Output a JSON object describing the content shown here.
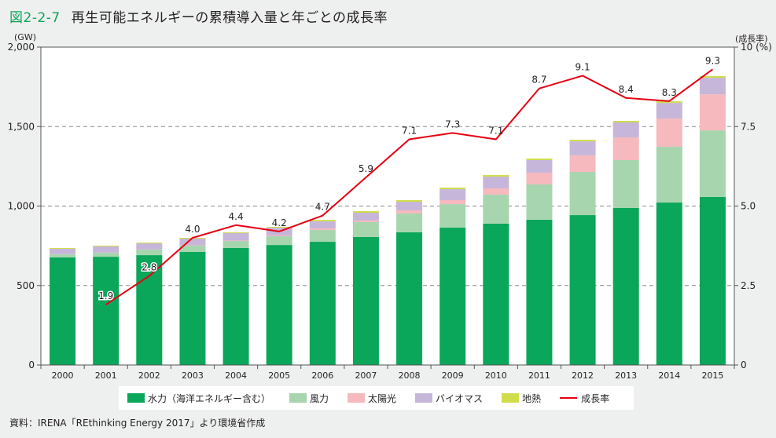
{
  "header": {
    "figure_number": "図2-2-7",
    "title": "再生可能エネルギーの累積導入量と年ごとの成長率"
  },
  "source_note": "資料：IRENA「REthinking Energy 2017」より環境省作成",
  "chart_data": {
    "type": "bar",
    "subtype": "stacked bar with line on secondary axis",
    "title": "再生可能エネルギーの累積導入量と年ごとの成長率",
    "categories": [
      "2000",
      "2001",
      "2002",
      "2003",
      "2004",
      "2005",
      "2006",
      "2007",
      "2008",
      "2009",
      "2010",
      "2011",
      "2012",
      "2013",
      "2014",
      "2015"
    ],
    "y_left": {
      "label": "(GW)",
      "range": [
        0,
        2000
      ],
      "ticks": [
        0,
        500,
        1000,
        1500,
        2000
      ],
      "tick_labels": [
        "0",
        "500",
        "1,000",
        "1,500",
        "2,000"
      ]
    },
    "y_right": {
      "label": "(成長率)",
      "unit_label": "10 (%)",
      "range": [
        0,
        10
      ],
      "ticks": [
        0,
        2.5,
        5.0,
        7.5,
        10
      ],
      "tick_labels": [
        "0",
        "2.5",
        "5.0",
        "7.5",
        "10 (%)"
      ]
    },
    "grid": "dashed horizontal at 500, 1000, 1500",
    "legend_position": "bottom",
    "series": [
      {
        "name": "水力（海洋エネルギー含む）",
        "color": "#0aa65a",
        "values": [
          677,
          681,
          691,
          711,
          736,
          755,
          775,
          805,
          835,
          864,
          889,
          914,
          943,
          988,
          1022,
          1057
        ]
      },
      {
        "name": "風力",
        "color": "#a6d5ae",
        "values": [
          19,
          25,
          35,
          40,
          44,
          55,
          74,
          94,
          118,
          148,
          183,
          222,
          272,
          301,
          351,
          419
        ]
      },
      {
        "name": "太陽光",
        "color": "#f6b9be",
        "values": [
          1,
          1,
          1,
          2,
          3,
          5,
          10,
          10,
          20,
          25,
          39,
          74,
          104,
          143,
          178,
          227
        ]
      },
      {
        "name": "バイオマス",
        "color": "#c6b6d9",
        "values": [
          34,
          39,
          38,
          42,
          47,
          49,
          45,
          49,
          54,
          69,
          74,
          79,
          88,
          94,
          98,
          104
        ]
      },
      {
        "name": "地熱",
        "color": "#cfdd4a",
        "values": [
          5,
          5,
          5,
          5,
          5,
          5,
          9,
          10,
          10,
          10,
          10,
          10,
          10,
          10,
          10,
          11
        ]
      },
      {
        "name": "成長率",
        "type": "line",
        "axis": "right",
        "color": "#e60012",
        "x": [
          "2001",
          "2002",
          "2003",
          "2004",
          "2005",
          "2006",
          "2007",
          "2008",
          "2009",
          "2010",
          "2011",
          "2012",
          "2013",
          "2014",
          "2015"
        ],
        "values": [
          1.9,
          2.8,
          4.0,
          4.4,
          4.2,
          4.7,
          5.9,
          7.1,
          7.3,
          7.1,
          8.7,
          9.1,
          8.4,
          8.3,
          9.3
        ],
        "labels": [
          "1.9",
          "2.8",
          "4.0",
          "4.4",
          "4.2",
          "4.7",
          "5.9",
          "7.1",
          "7.3",
          "7.1",
          "8.7",
          "9.1",
          "8.4",
          "8.3",
          "9.3"
        ]
      }
    ]
  },
  "legend": {
    "items": [
      {
        "label": "水力（海洋エネルギー含む）",
        "color": "#0aa65a",
        "kind": "swatch"
      },
      {
        "label": "風力",
        "color": "#a6d5ae",
        "kind": "swatch"
      },
      {
        "label": "太陽光",
        "color": "#f6b9be",
        "kind": "swatch"
      },
      {
        "label": "バイオマス",
        "color": "#c6b6d9",
        "kind": "swatch"
      },
      {
        "label": "地熱",
        "color": "#cfdd4a",
        "kind": "swatch"
      },
      {
        "label": "成長率",
        "color": "#e60012",
        "kind": "line"
      }
    ]
  },
  "axis_units": {
    "left": "(GW)",
    "right": "(成長率)"
  }
}
